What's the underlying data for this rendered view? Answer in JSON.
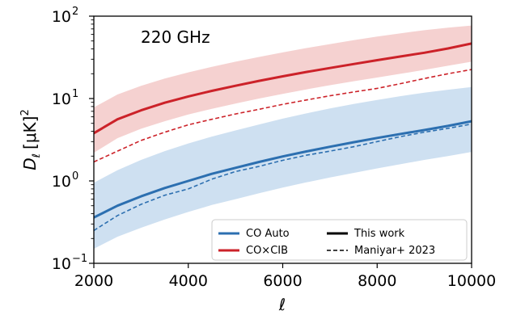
{
  "chart_data": {
    "type": "line",
    "annotation": "220 GHz",
    "xlabel": "ℓ",
    "ylabel_main": "D",
    "ylabel_sub": "ℓ",
    "ylabel_unit": "[μK]",
    "ylabel_exp": "2",
    "xscale": "linear",
    "yscale": "log",
    "xlim": [
      2000,
      10000
    ],
    "ylim": [
      0.1,
      100
    ],
    "x_ticks": [
      {
        "value": 2000,
        "label": "2000"
      },
      {
        "value": 4000,
        "label": "4000"
      },
      {
        "value": 6000,
        "label": "6000"
      },
      {
        "value": 8000,
        "label": "8000"
      },
      {
        "value": 10000,
        "label": "10000"
      }
    ],
    "y_ticks": [
      {
        "value": 0.1,
        "base": "10",
        "exp": "−1"
      },
      {
        "value": 1,
        "base": "10",
        "exp": "0"
      },
      {
        "value": 10,
        "base": "10",
        "exp": "1"
      },
      {
        "value": 100,
        "base": "10",
        "exp": "2"
      }
    ],
    "grid": false,
    "legend_position": "lower-right",
    "legend": [
      {
        "label": "CO Auto",
        "color": "#2c6fb0",
        "style": "solid",
        "kind": "color"
      },
      {
        "label": "CO×CIB",
        "color": "#cc2229",
        "style": "solid",
        "kind": "color"
      },
      {
        "label": "This work",
        "color": "#000000",
        "style": "solid",
        "kind": "style"
      },
      {
        "label": "Maniyar+ 2023",
        "color": "#000000",
        "style": "dashed",
        "kind": "style"
      }
    ],
    "x": [
      2000,
      2500,
      3000,
      3500,
      4000,
      4500,
      5000,
      5500,
      6000,
      6500,
      7000,
      7500,
      8000,
      8500,
      9000,
      9500,
      10000
    ],
    "series": [
      {
        "name": "CO Auto",
        "color": "#2c6fb0",
        "band_color": "#c6dbef",
        "this_work": [
          0.36,
          0.5,
          0.65,
          0.82,
          1.0,
          1.22,
          1.44,
          1.7,
          1.98,
          2.28,
          2.6,
          2.95,
          3.32,
          3.72,
          4.15,
          4.65,
          5.3
        ],
        "band_low": [
          0.15,
          0.21,
          0.27,
          0.34,
          0.42,
          0.51,
          0.6,
          0.71,
          0.83,
          0.96,
          1.1,
          1.25,
          1.42,
          1.6,
          1.8,
          2.0,
          2.25
        ],
        "band_high": [
          0.95,
          1.35,
          1.8,
          2.3,
          2.85,
          3.45,
          4.1,
          4.85,
          5.7,
          6.6,
          7.6,
          8.6,
          9.6,
          10.7,
          11.8,
          12.8,
          13.8
        ],
        "maniyar": [
          0.25,
          0.38,
          0.52,
          0.67,
          0.8,
          1.05,
          1.3,
          1.5,
          1.78,
          2.05,
          2.3,
          2.6,
          3.0,
          3.45,
          3.9,
          4.35,
          4.9
        ]
      },
      {
        "name": "CO×CIB",
        "color": "#cc2229",
        "band_color": "#f3c9c8",
        "this_work": [
          3.8,
          5.6,
          7.2,
          8.9,
          10.6,
          12.4,
          14.3,
          16.4,
          18.6,
          21.0,
          23.5,
          26.2,
          29.2,
          32.4,
          36.0,
          40.5,
          46.5
        ],
        "band_low": [
          2.2,
          3.3,
          4.3,
          5.3,
          6.4,
          7.5,
          8.7,
          10.0,
          11.4,
          12.9,
          14.5,
          16.2,
          18.0,
          20.0,
          22.3,
          25.0,
          28.0
        ],
        "band_high": [
          7.8,
          11.2,
          14.3,
          17.5,
          20.8,
          24.3,
          28.0,
          32.0,
          36.3,
          41.0,
          45.8,
          51.0,
          56.5,
          62.0,
          67.5,
          72.5,
          77.0
        ],
        "maniyar": [
          1.7,
          2.3,
          3.1,
          3.9,
          4.8,
          5.6,
          6.5,
          7.4,
          8.5,
          9.6,
          10.8,
          12.0,
          13.3,
          15.2,
          17.5,
          20.0,
          22.5
        ]
      }
    ]
  }
}
